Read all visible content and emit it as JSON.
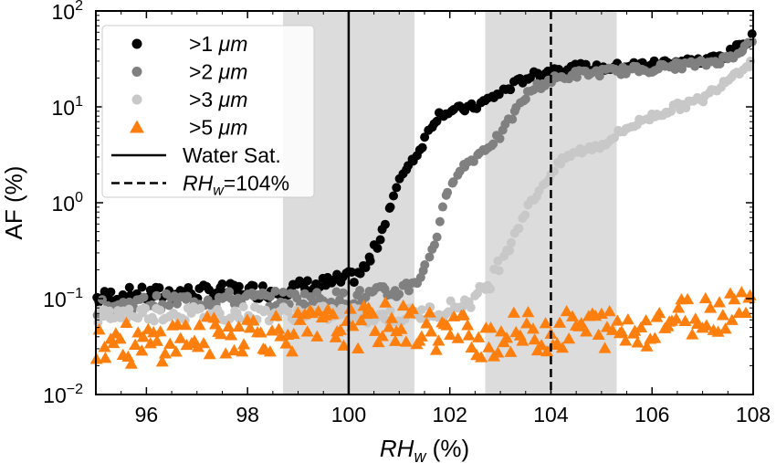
{
  "chart_data": {
    "type": "scatter",
    "xlabel": {
      "var": "RH",
      "sub": "w",
      "unit": "(%)"
    },
    "ylabel": "AF (%)",
    "xlim": [
      95,
      108
    ],
    "ylim": [
      0.01,
      100
    ],
    "yscale": "log",
    "xticks": [
      96,
      98,
      100,
      102,
      104,
      106,
      108
    ],
    "yticks": [
      {
        "value": 0.01,
        "base": "10",
        "exp": "−2"
      },
      {
        "value": 0.1,
        "base": "10",
        "exp": "−1"
      },
      {
        "value": 1,
        "base": "10",
        "exp": "0"
      },
      {
        "value": 10,
        "base": "10",
        "exp": "1"
      },
      {
        "value": 100,
        "base": "10",
        "exp": "2"
      }
    ],
    "shaded_regions": [
      [
        98.7,
        101.3
      ],
      [
        102.7,
        105.3
      ]
    ],
    "vertical_lines": [
      {
        "x": 100,
        "style": "solid",
        "legend": "Water Sat."
      },
      {
        "x": 104,
        "style": "dashed",
        "legend": "RHw=104%"
      }
    ],
    "legend": {
      "placement": "top-left",
      "entries": [
        {
          "kind": "marker",
          "label": ">1 μm",
          "color": "#000000",
          "marker": "circle"
        },
        {
          "kind": "marker",
          "label": ">2 μm",
          "color": "#808080",
          "marker": "circle"
        },
        {
          "kind": "marker",
          "label": ">3 μm",
          "color": "#c8c8c8",
          "marker": "circle"
        },
        {
          "kind": "marker",
          "label": ">5 μm",
          "color": "#ff7f0e",
          "marker": "triangle"
        },
        {
          "kind": "line",
          "label": "Water Sat.",
          "style": "solid"
        },
        {
          "kind": "line",
          "label_var": "RH",
          "label_sub": "w",
          "label_rest": "=104%",
          "style": "dashed"
        }
      ]
    },
    "series": [
      {
        "name": ">1 μm",
        "color": "#000000",
        "marker": "circle",
        "points": [
          [
            95,
            0.1
          ],
          [
            95.5,
            0.11
          ],
          [
            96,
            0.11
          ],
          [
            96.5,
            0.115
          ],
          [
            97,
            0.115
          ],
          [
            97.5,
            0.12
          ],
          [
            98,
            0.12
          ],
          [
            98.5,
            0.12
          ],
          [
            99,
            0.13
          ],
          [
            99.5,
            0.14
          ],
          [
            100,
            0.16
          ],
          [
            100.3,
            0.2
          ],
          [
            100.5,
            0.3
          ],
          [
            100.7,
            0.6
          ],
          [
            100.9,
            1.2
          ],
          [
            101.1,
            2.2
          ],
          [
            101.4,
            3.5
          ],
          [
            101.6,
            6
          ],
          [
            101.8,
            8.5
          ],
          [
            102,
            9
          ],
          [
            102.5,
            10
          ],
          [
            103,
            14
          ],
          [
            103.5,
            20
          ],
          [
            104,
            24
          ],
          [
            104.5,
            26
          ],
          [
            105,
            25
          ],
          [
            105.5,
            27
          ],
          [
            106,
            28
          ],
          [
            106.5,
            30
          ],
          [
            107,
            30
          ],
          [
            107.5,
            35
          ],
          [
            108,
            55
          ]
        ]
      },
      {
        "name": ">2 μm",
        "color": "#808080",
        "marker": "circle",
        "points": [
          [
            95,
            0.08
          ],
          [
            95.5,
            0.085
          ],
          [
            96,
            0.09
          ],
          [
            96.5,
            0.095
          ],
          [
            97,
            0.095
          ],
          [
            97.5,
            0.1
          ],
          [
            98,
            0.1
          ],
          [
            98.5,
            0.1
          ],
          [
            99,
            0.1
          ],
          [
            99.5,
            0.1
          ],
          [
            100,
            0.1
          ],
          [
            100.5,
            0.11
          ],
          [
            101,
            0.12
          ],
          [
            101.3,
            0.15
          ],
          [
            101.5,
            0.2
          ],
          [
            101.7,
            0.4
          ],
          [
            101.9,
            1
          ],
          [
            102.1,
            2
          ],
          [
            102.5,
            3
          ],
          [
            103,
            5
          ],
          [
            103.3,
            9
          ],
          [
            103.6,
            15
          ],
          [
            104,
            19
          ],
          [
            104.5,
            22
          ],
          [
            105,
            23
          ],
          [
            105.5,
            24
          ],
          [
            106,
            25
          ],
          [
            106.5,
            27
          ],
          [
            107,
            28
          ],
          [
            107.5,
            32
          ],
          [
            108,
            48
          ]
        ]
      },
      {
        "name": ">3 μm",
        "color": "#c8c8c8",
        "marker": "circle",
        "points": [
          [
            95,
            0.065
          ],
          [
            95.5,
            0.07
          ],
          [
            96,
            0.07
          ],
          [
            96.5,
            0.07
          ],
          [
            97,
            0.07
          ],
          [
            97.5,
            0.07
          ],
          [
            98,
            0.07
          ],
          [
            98.5,
            0.07
          ],
          [
            99,
            0.07
          ],
          [
            99.5,
            0.07
          ],
          [
            100,
            0.07
          ],
          [
            100.5,
            0.065
          ],
          [
            101,
            0.065
          ],
          [
            101.5,
            0.07
          ],
          [
            102,
            0.08
          ],
          [
            102.5,
            0.1
          ],
          [
            102.8,
            0.15
          ],
          [
            103,
            0.25
          ],
          [
            103.3,
            0.5
          ],
          [
            103.6,
            1
          ],
          [
            104,
            2
          ],
          [
            104.3,
            3
          ],
          [
            104.6,
            3.5
          ],
          [
            105,
            4
          ],
          [
            105.5,
            6
          ],
          [
            106,
            8
          ],
          [
            106.5,
            10
          ],
          [
            107,
            12
          ],
          [
            107.5,
            20
          ],
          [
            108,
            30
          ]
        ]
      },
      {
        "name": ">5 μm",
        "color": "#ff7f0e",
        "marker": "triangle",
        "points": [
          [
            95,
            0.035
          ],
          [
            95.4,
            0.04
          ],
          [
            95.8,
            0.03
          ],
          [
            96.2,
            0.035
          ],
          [
            96.6,
            0.04
          ],
          [
            97,
            0.04
          ],
          [
            97.4,
            0.04
          ],
          [
            97.8,
            0.045
          ],
          [
            98.2,
            0.045
          ],
          [
            98.6,
            0.045
          ],
          [
            99,
            0.045
          ],
          [
            99.4,
            0.05
          ],
          [
            99.8,
            0.05
          ],
          [
            100.2,
            0.05
          ],
          [
            100.6,
            0.055
          ],
          [
            101,
            0.055
          ],
          [
            101.4,
            0.05
          ],
          [
            101.8,
            0.045
          ],
          [
            102.2,
            0.045
          ],
          [
            102.6,
            0.04
          ],
          [
            103,
            0.04
          ],
          [
            103.4,
            0.045
          ],
          [
            103.8,
            0.045
          ],
          [
            104.2,
            0.045
          ],
          [
            104.6,
            0.05
          ],
          [
            105,
            0.05
          ],
          [
            105.4,
            0.045
          ],
          [
            105.8,
            0.05
          ],
          [
            106.2,
            0.06
          ],
          [
            106.6,
            0.065
          ],
          [
            107,
            0.07
          ],
          [
            107.4,
            0.075
          ],
          [
            107.8,
            0.1
          ],
          [
            108,
            0.15
          ]
        ]
      }
    ]
  }
}
